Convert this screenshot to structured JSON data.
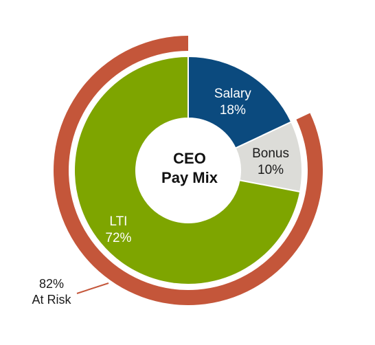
{
  "chart_data": {
    "type": "pie",
    "center_title": [
      "CEO",
      "Pay Mix"
    ],
    "inner_ring": [
      {
        "name": "Salary",
        "value": 18,
        "value_label": "18%",
        "color": "#0b4a7e",
        "label_color": "#ffffff"
      },
      {
        "name": "Bonus",
        "value": 10,
        "value_label": "10%",
        "color": "#dcdcd8",
        "label_color": "#1a1a1a"
      },
      {
        "name": "LTI",
        "value": 72,
        "value_label": "72%",
        "color": "#7ea500",
        "label_color": "#ffffff"
      }
    ],
    "outer_ring": {
      "value": 82,
      "color": "#c4563a",
      "label": [
        "82%",
        "At Risk"
      ]
    }
  }
}
